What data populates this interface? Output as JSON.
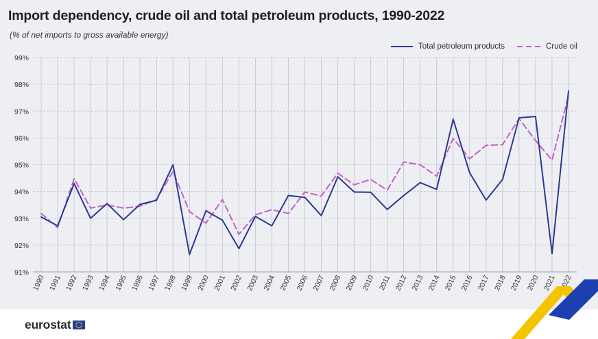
{
  "title": "Import dependency, crude oil and total petroleum products, 1990-2022",
  "subtitle": "(% of net imports to gross available energy)",
  "brand": {
    "name": "eurostat"
  },
  "colors": {
    "total": "#2b3990",
    "crude": "#c061c7",
    "grid": "#c9cad3",
    "background": "#eeeff3"
  },
  "chart_data": {
    "type": "line",
    "categories": [
      "1990",
      "1991",
      "1992",
      "1993",
      "1994",
      "1995",
      "1996",
      "1997",
      "1998",
      "1999",
      "2000",
      "2001",
      "2002",
      "2003",
      "2004",
      "2005",
      "2006",
      "2007",
      "2008",
      "2009",
      "2010",
      "2011",
      "2012",
      "2013",
      "2014",
      "2015",
      "2016",
      "2017",
      "2018",
      "2019",
      "2020",
      "2021",
      "2022"
    ],
    "series": [
      {
        "name": "Total petroleum products",
        "style": "solid",
        "values": [
          93.05,
          92.72,
          94.3,
          93.0,
          93.55,
          92.95,
          93.52,
          93.67,
          95.0,
          91.65,
          93.28,
          92.93,
          91.87,
          93.07,
          92.72,
          93.85,
          93.78,
          93.1,
          94.55,
          93.98,
          93.97,
          93.33,
          93.85,
          94.33,
          94.08,
          96.7,
          94.7,
          93.68,
          94.45,
          96.75,
          96.8,
          91.68,
          97.75
        ]
      },
      {
        "name": "Crude oil",
        "style": "dashed",
        "values": [
          93.18,
          92.65,
          94.48,
          93.38,
          93.5,
          93.38,
          93.45,
          93.7,
          94.75,
          93.25,
          92.82,
          93.7,
          92.4,
          93.13,
          93.32,
          93.18,
          93.98,
          93.83,
          94.68,
          94.25,
          94.45,
          94.05,
          95.1,
          95.0,
          94.57,
          95.98,
          95.22,
          95.72,
          95.75,
          96.72,
          95.9,
          95.17,
          97.58
        ]
      }
    ],
    "ylim": [
      91,
      99
    ],
    "yticks": [
      "91%",
      "92%",
      "93%",
      "94%",
      "95%",
      "96%",
      "97%",
      "98%",
      "99%"
    ],
    "grid": true,
    "legend_position": "top-right"
  }
}
